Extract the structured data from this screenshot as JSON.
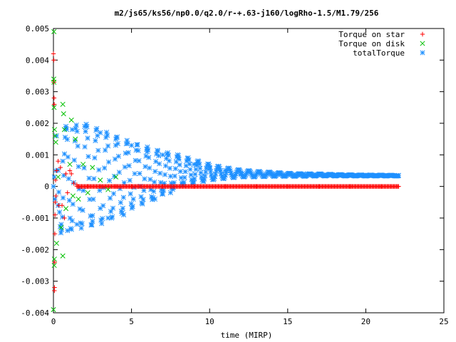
{
  "chart_data": {
    "type": "scatter",
    "title": "m2/js65/ks56/np0.0/q2.0/r-+.63-j160/logRho-1.5/M1.79/256",
    "xlabel": "time (MIRP)",
    "ylabel": "",
    "xlim": [
      0,
      25
    ],
    "ylim": [
      -0.004,
      0.005
    ],
    "x_ticks": [
      "0",
      "5",
      "10",
      "15",
      "20",
      "25"
    ],
    "y_ticks": [
      "-0.004",
      "-0.003",
      "-0.002",
      "-0.001",
      "0",
      "0.001",
      "0.002",
      "0.003",
      "0.004",
      "0.005"
    ],
    "grid": false,
    "legend_position": "top-right",
    "series": [
      {
        "name": "Torque on star",
        "marker": "plus",
        "color": "#ff0000",
        "points": [
          [
            0.0,
            0.0042
          ],
          [
            0.02,
            0.004
          ],
          [
            0.03,
            0.0033
          ],
          [
            0.04,
            0.0028
          ],
          [
            0.05,
            0.0026
          ],
          [
            0.06,
            -0.0033
          ],
          [
            0.07,
            -0.0032
          ],
          [
            0.08,
            -0.0024
          ],
          [
            0.09,
            -0.0015
          ],
          [
            0.1,
            -0.0009
          ],
          [
            0.12,
            -0.0005
          ],
          [
            0.14,
            0.0002
          ],
          [
            0.16,
            -0.0003
          ],
          [
            0.2,
            0.0005
          ],
          [
            0.3,
            0.0008
          ],
          [
            0.35,
            -0.0006
          ],
          [
            0.45,
            0.0006
          ],
          [
            0.55,
            -0.0006
          ],
          [
            0.7,
            -0.001
          ],
          [
            0.8,
            0.0004
          ],
          [
            0.9,
            -0.0002
          ],
          [
            1.05,
            0.0005
          ],
          [
            1.15,
            0.0004
          ],
          [
            1.3,
            0.0001
          ],
          [
            1.5,
            5e-05
          ],
          [
            1.8,
            0.0
          ],
          [
            2.2,
            0.0
          ],
          [
            3,
            0.0
          ],
          [
            4,
            0.0
          ],
          [
            5,
            0.0
          ],
          [
            7,
            0.0
          ],
          [
            9,
            0.0
          ],
          [
            11,
            0.0
          ],
          [
            13,
            0.0
          ],
          [
            15,
            0.0
          ],
          [
            17,
            0.0
          ],
          [
            19,
            0.0
          ],
          [
            21,
            0.0
          ],
          [
            22.1,
            0.0
          ]
        ]
      },
      {
        "name": "Torque on disk",
        "marker": "cross",
        "color": "#00c000",
        "points": [
          [
            0.03,
            0.0049
          ],
          [
            0.0,
            -0.0039
          ],
          [
            0.02,
            0.0034
          ],
          [
            0.03,
            0.0033
          ],
          [
            0.04,
            0.0025
          ],
          [
            0.05,
            -0.0025
          ],
          [
            0.06,
            -0.0023
          ],
          [
            0.07,
            0.0018
          ],
          [
            0.1,
            0.0016
          ],
          [
            0.15,
            0.0014
          ],
          [
            0.2,
            -0.0018
          ],
          [
            0.3,
            0.0003
          ],
          [
            0.6,
            0.0026
          ],
          [
            0.65,
            0.0023
          ],
          [
            0.6,
            -0.0022
          ],
          [
            0.5,
            -0.0013
          ],
          [
            0.7,
            0.0018
          ],
          [
            0.8,
            -0.0007
          ],
          [
            1.05,
            0.0007
          ],
          [
            1.15,
            0.0021
          ],
          [
            1.25,
            -0.0003
          ],
          [
            1.4,
            0.0015
          ],
          [
            1.6,
            -0.0004
          ],
          [
            1.9,
            0.0007
          ],
          [
            2.2,
            -0.0002
          ],
          [
            2.5,
            0.0006
          ],
          [
            3,
            0.0002
          ],
          [
            3.5,
            -0.0001
          ],
          [
            4,
            0.0003
          ]
        ]
      },
      {
        "name": "totalTorque",
        "marker": "star",
        "color": "#1e90ff",
        "points": [
          [
            0.0,
            0.0
          ],
          [
            0.05,
            0.0003
          ],
          [
            0.1,
            -0.0004
          ],
          [
            0.15,
            0.0005
          ],
          [
            0.2,
            0.0016
          ],
          [
            0.3,
            -0.0006
          ],
          [
            0.5,
            -0.0012
          ],
          [
            0.6,
            0.0008
          ],
          [
            0.8,
            0.0019
          ],
          [
            0.9,
            -0.0014
          ],
          [
            1.2,
            0.0018
          ],
          [
            1.5,
            -0.0012
          ],
          [
            2,
            0.0019
          ],
          [
            2.5,
            -0.0011
          ],
          [
            3,
            0.0017
          ],
          [
            3.5,
            -0.001
          ],
          [
            4,
            0.0015
          ],
          [
            4.5,
            -0.0009
          ],
          [
            5,
            0.0013
          ],
          [
            6,
            0.0011
          ],
          [
            6.5,
            -0.0004
          ],
          [
            7,
            0.001
          ],
          [
            7.5,
            -0.0002
          ],
          [
            8,
            0.0009
          ],
          [
            9,
            0.0007
          ],
          [
            10,
            0.0006
          ],
          [
            11,
            0.0005
          ],
          [
            12,
            0.0004
          ],
          [
            14,
            0.0004
          ],
          [
            16,
            0.0004
          ],
          [
            18,
            0.00037
          ],
          [
            20,
            0.00036
          ],
          [
            22.1,
            0.00035
          ]
        ],
        "envelope": {
          "t": [
            0.3,
            1,
            2,
            3,
            4,
            5,
            6,
            7,
            8,
            9,
            10,
            11,
            12,
            13,
            14,
            15,
            16,
            17,
            18,
            19,
            20,
            21,
            22.1
          ],
          "upper": [
            0.00175,
            0.0019,
            0.002,
            0.0018,
            0.0016,
            0.0014,
            0.00125,
            0.0011,
            0.001,
            0.00085,
            0.0007,
            0.0006,
            0.00052,
            0.00048,
            0.00045,
            0.00042,
            0.0004,
            0.0004,
            0.00038,
            0.00037,
            0.00036,
            0.00036,
            0.00035
          ],
          "lower": [
            -0.0015,
            -0.0014,
            -0.0013,
            -0.0012,
            -0.00095,
            -0.0007,
            -0.0005,
            -0.00025,
            0.0,
            0.0001,
            0.0002,
            0.00025,
            0.0003,
            0.0003,
            0.00032,
            0.00032,
            0.00032,
            0.00033,
            0.00033,
            0.00033,
            0.00033,
            0.00033,
            0.00033
          ]
        }
      }
    ]
  }
}
